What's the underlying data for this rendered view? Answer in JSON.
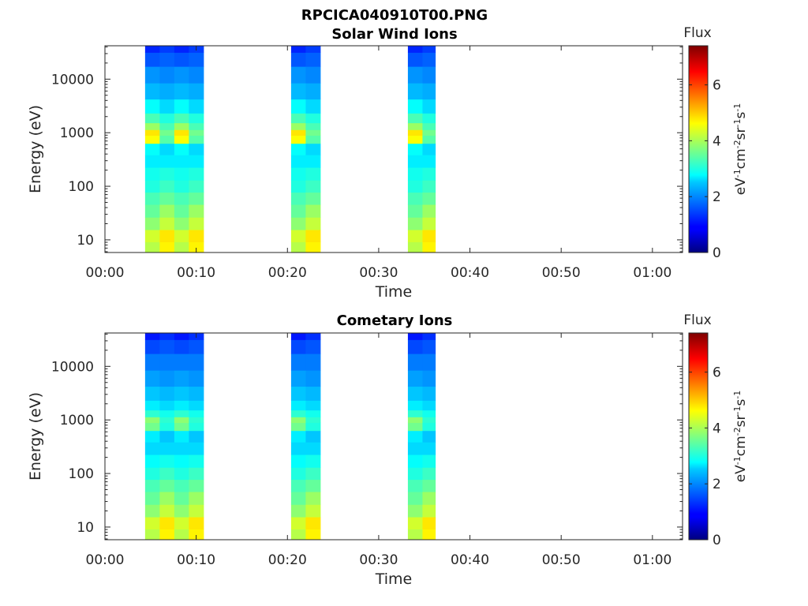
{
  "figure": {
    "title": "RPCICA040910T00.PNG"
  },
  "colorbar": {
    "label": "Flux",
    "unit_html": [
      "eV",
      "-1",
      "cm",
      "-2",
      "sr",
      "-1",
      "s",
      "-1"
    ],
    "ticks": [
      "0",
      "2",
      "4",
      "6"
    ],
    "range": [
      0,
      7.4
    ],
    "colormap": "jet"
  },
  "chart_data": [
    {
      "type": "heatmap",
      "title": "Solar Wind Ions",
      "xlabel": "Time",
      "ylabel": "Energy (eV)",
      "x_ticks": [
        "00:00",
        "00:10",
        "00:20",
        "00:30",
        "00:40",
        "00:50",
        "01:00"
      ],
      "x_tick_minutes": [
        0,
        10,
        20,
        30,
        40,
        50,
        60
      ],
      "xlim_minutes": [
        0,
        63.3
      ],
      "y_scale": "log",
      "y_ticks": [
        "10",
        "100",
        "1000",
        "10000"
      ],
      "y_tick_values": [
        10,
        100,
        1000,
        10000
      ],
      "ylim": [
        5.8,
        42000
      ],
      "grid": false,
      "columns": [
        {
          "start_min": 4.4,
          "end_min": 6.0
        },
        {
          "start_min": 6.0,
          "end_min": 7.6
        },
        {
          "start_min": 7.6,
          "end_min": 9.2
        },
        {
          "start_min": 9.2,
          "end_min": 10.8
        },
        {
          "start_min": 20.4,
          "end_min": 22.0
        },
        {
          "start_min": 22.0,
          "end_min": 23.6
        },
        {
          "start_min": 33.2,
          "end_min": 34.8
        },
        {
          "start_min": 34.8,
          "end_min": 36.2
        }
      ],
      "energy_profile": {
        "energies_eV": [
          7,
          12,
          20,
          35,
          60,
          100,
          170,
          300,
          500,
          800,
          1000,
          1300,
          1800,
          3000,
          6000,
          12000,
          25000,
          40000
        ],
        "flux_odd_columns": [
          4.1,
          4.3,
          3.8,
          3.5,
          3.3,
          3.0,
          2.9,
          2.7,
          2.8,
          4.6,
          4.8,
          3.9,
          3.3,
          2.8,
          2.4,
          2.1,
          1.6,
          1.2
        ],
        "flux_even_columns": [
          4.7,
          4.8,
          4.2,
          3.9,
          3.5,
          3.2,
          3.0,
          2.7,
          2.6,
          3.4,
          3.6,
          3.3,
          3.0,
          2.6,
          2.3,
          2.0,
          1.7,
          1.4
        ]
      }
    },
    {
      "type": "heatmap",
      "title": "Cometary Ions",
      "xlabel": "Time",
      "ylabel": "Energy (eV)",
      "x_ticks": [
        "00:00",
        "00:10",
        "00:20",
        "00:30",
        "00:40",
        "00:50",
        "01:00"
      ],
      "x_tick_minutes": [
        0,
        10,
        20,
        30,
        40,
        50,
        60
      ],
      "xlim_minutes": [
        0,
        63.3
      ],
      "y_scale": "log",
      "y_ticks": [
        "10",
        "100",
        "1000",
        "10000"
      ],
      "y_tick_values": [
        10,
        100,
        1000,
        10000
      ],
      "ylim": [
        5.8,
        42000
      ],
      "grid": false,
      "columns": [
        {
          "start_min": 4.4,
          "end_min": 6.0
        },
        {
          "start_min": 6.0,
          "end_min": 7.6
        },
        {
          "start_min": 7.6,
          "end_min": 9.2
        },
        {
          "start_min": 9.2,
          "end_min": 10.8
        },
        {
          "start_min": 20.4,
          "end_min": 22.0
        },
        {
          "start_min": 22.0,
          "end_min": 23.6
        },
        {
          "start_min": 33.2,
          "end_min": 34.8
        },
        {
          "start_min": 34.8,
          "end_min": 36.2
        }
      ],
      "energy_profile": {
        "energies_eV": [
          7,
          12,
          20,
          35,
          60,
          100,
          170,
          300,
          500,
          800,
          1000,
          1300,
          1800,
          3000,
          6000,
          12000,
          25000,
          40000
        ],
        "flux_odd_columns": [
          4.1,
          4.3,
          3.8,
          3.5,
          3.3,
          3.0,
          2.8,
          2.6,
          2.7,
          3.6,
          3.8,
          3.1,
          2.7,
          2.5,
          2.2,
          1.9,
          1.5,
          1.1
        ],
        "flux_even_columns": [
          4.7,
          4.8,
          4.2,
          3.9,
          3.5,
          3.2,
          2.9,
          2.6,
          2.5,
          3.0,
          3.1,
          2.9,
          2.6,
          2.4,
          2.1,
          1.9,
          1.6,
          1.3
        ]
      }
    }
  ]
}
